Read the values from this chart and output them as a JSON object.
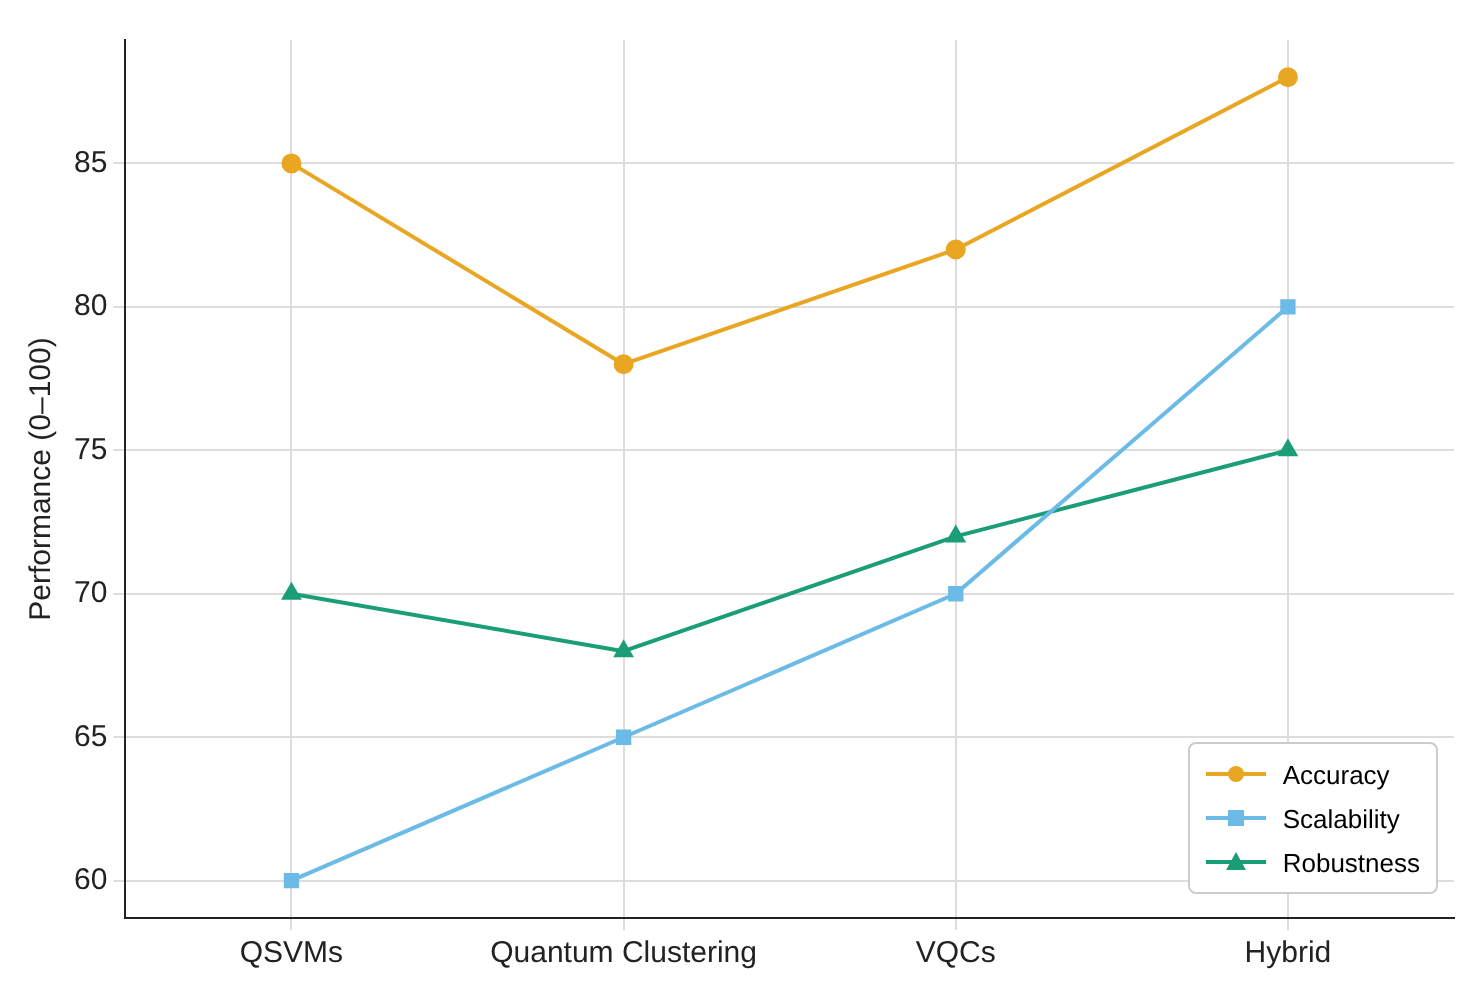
{
  "chart_data": {
    "type": "line",
    "ylabel": "Performance (0–100)",
    "categories": [
      "QSVMs",
      "Quantum Clustering",
      "VQCs",
      "Hybrid"
    ],
    "series": [
      {
        "name": "Accuracy",
        "color": "#e8a623",
        "values": [
          85,
          78,
          82,
          88
        ],
        "marker": "circle"
      },
      {
        "name": "Scalability",
        "color": "#6cbbe6",
        "values": [
          60,
          65,
          70,
          80
        ],
        "marker": "square"
      },
      {
        "name": "Robustness",
        "color": "#1b9e77",
        "values": [
          70,
          68,
          72,
          75
        ],
        "marker": "triangle"
      }
    ],
    "ylim": [
      58.7,
      89.3
    ],
    "yticks": [
      60,
      65,
      70,
      75,
      80,
      85
    ],
    "grid": true,
    "legend": "bottom right",
    "line_style": "solid"
  }
}
